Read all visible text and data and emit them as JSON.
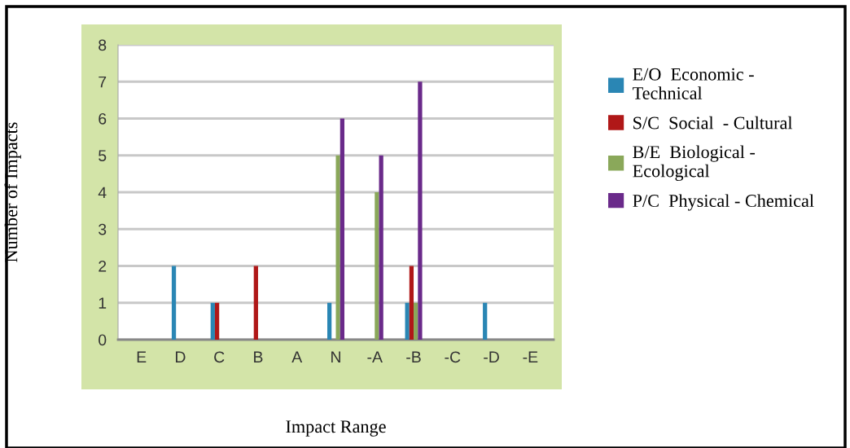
{
  "chart_data": {
    "type": "bar",
    "xlabel": "Impact Range",
    "ylabel": "Number of Impacts",
    "categories": [
      "E",
      "D",
      "C",
      "B",
      "A",
      "N",
      "-A",
      "-B",
      "-C",
      "-D",
      "-E"
    ],
    "series": [
      {
        "name": "E/O  Economic -\nTechnical",
        "color": "#2a86b4",
        "values": [
          0,
          2,
          1,
          0,
          0,
          1,
          0,
          1,
          0,
          1,
          0
        ]
      },
      {
        "name": "S/C  Social  - Cultural",
        "color": "#b01818",
        "values": [
          0,
          0,
          1,
          2,
          0,
          0,
          0,
          2,
          0,
          0,
          0
        ]
      },
      {
        "name": "B/E  Biological -\nEcological",
        "color": "#8aa85a",
        "values": [
          0,
          0,
          0,
          0,
          0,
          5,
          4,
          1,
          0,
          0,
          0
        ]
      },
      {
        "name": "P/C  Physical - Chemical",
        "color": "#6a2a8a",
        "values": [
          0,
          0,
          0,
          0,
          0,
          6,
          5,
          7,
          0,
          0,
          0
        ]
      }
    ],
    "ylim": [
      0,
      8
    ],
    "yticks": [
      0,
      1,
      2,
      3,
      4,
      5,
      6,
      7,
      8
    ],
    "grid": "y",
    "legend": "right"
  }
}
